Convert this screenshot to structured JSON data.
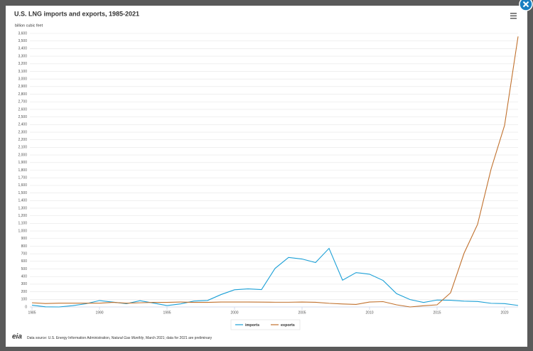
{
  "chart_data": {
    "type": "line",
    "title": "U.S. LNG imports and exports, 1985-2021",
    "subtitle": "billion cubic feet",
    "x": [
      1985,
      1986,
      1987,
      1988,
      1989,
      1990,
      1991,
      1992,
      1993,
      1994,
      1995,
      1996,
      1997,
      1998,
      1999,
      2000,
      2001,
      2002,
      2003,
      2004,
      2005,
      2006,
      2007,
      2008,
      2009,
      2010,
      2011,
      2012,
      2013,
      2014,
      2015,
      2016,
      2017,
      2018,
      2019,
      2020,
      2021
    ],
    "series": [
      {
        "name": "imports",
        "color": "#1a9fd6",
        "values": [
          24,
          2,
          0,
          17,
          42,
          84,
          64,
          43,
          82,
          51,
          18,
          40,
          78,
          85,
          163,
          226,
          238,
          229,
          507,
          652,
          631,
          584,
          771,
          352,
          452,
          431,
          349,
          175,
          97,
          59,
          91,
          88,
          77,
          72,
          48,
          44,
          20
        ]
      },
      {
        "name": "exports",
        "color": "#c0702c",
        "values": [
          55,
          45,
          50,
          50,
          50,
          50,
          60,
          50,
          55,
          60,
          60,
          65,
          60,
          60,
          65,
          65,
          65,
          64,
          62,
          62,
          65,
          61,
          48,
          39,
          33,
          65,
          70,
          28,
          0,
          16,
          28,
          186,
          707,
          1087,
          1814,
          2390,
          3560
        ]
      }
    ],
    "xlim": [
      1985,
      2021
    ],
    "xticks": [
      1985,
      1990,
      1995,
      2000,
      2005,
      2010,
      2015,
      2020
    ],
    "ylim": [
      0,
      3600
    ],
    "yticks": [
      0,
      100,
      200,
      300,
      400,
      500,
      600,
      700,
      800,
      900,
      {
        "value": 1000,
        "label": "1,000"
      },
      {
        "value": 1100,
        "label": "1,100"
      },
      {
        "value": 1200,
        "label": "1,200"
      },
      {
        "value": 1300,
        "label": "1,300"
      },
      {
        "value": 1400,
        "label": "1,400"
      },
      {
        "value": 1500,
        "label": "1,500"
      },
      {
        "value": 1600,
        "label": "1,600"
      },
      {
        "value": 1700,
        "label": "1,700"
      },
      {
        "value": 1800,
        "label": "1,800"
      },
      {
        "value": 1900,
        "label": "1,900"
      },
      {
        "value": 2000,
        "label": "2,000"
      },
      {
        "value": 2100,
        "label": "2,100"
      },
      {
        "value": 2200,
        "label": "2,200"
      },
      {
        "value": 2300,
        "label": "2,300"
      },
      {
        "value": 2400,
        "label": "2,400"
      },
      {
        "value": 2500,
        "label": "2,500"
      },
      {
        "value": 2600,
        "label": "2,600"
      },
      {
        "value": 2700,
        "label": "2,700"
      },
      {
        "value": 2800,
        "label": "2,800"
      },
      {
        "value": 2900,
        "label": "2,900"
      },
      {
        "value": 3000,
        "label": "3,000"
      },
      {
        "value": 3100,
        "label": "3,100"
      },
      {
        "value": 3200,
        "label": "3,200"
      },
      {
        "value": 3300,
        "label": "3,300"
      },
      {
        "value": 3400,
        "label": "3,400"
      },
      {
        "value": 3500,
        "label": "3,500"
      },
      {
        "value": 3600,
        "label": "3,600"
      }
    ],
    "grid": true,
    "legend": "bottom",
    "logo": "eia",
    "source": [
      "Data source: U.S. Energy Information Administration, ",
      "Natural Gas Monthly",
      ", March 2021; data for 2021 are preliminary"
    ]
  }
}
